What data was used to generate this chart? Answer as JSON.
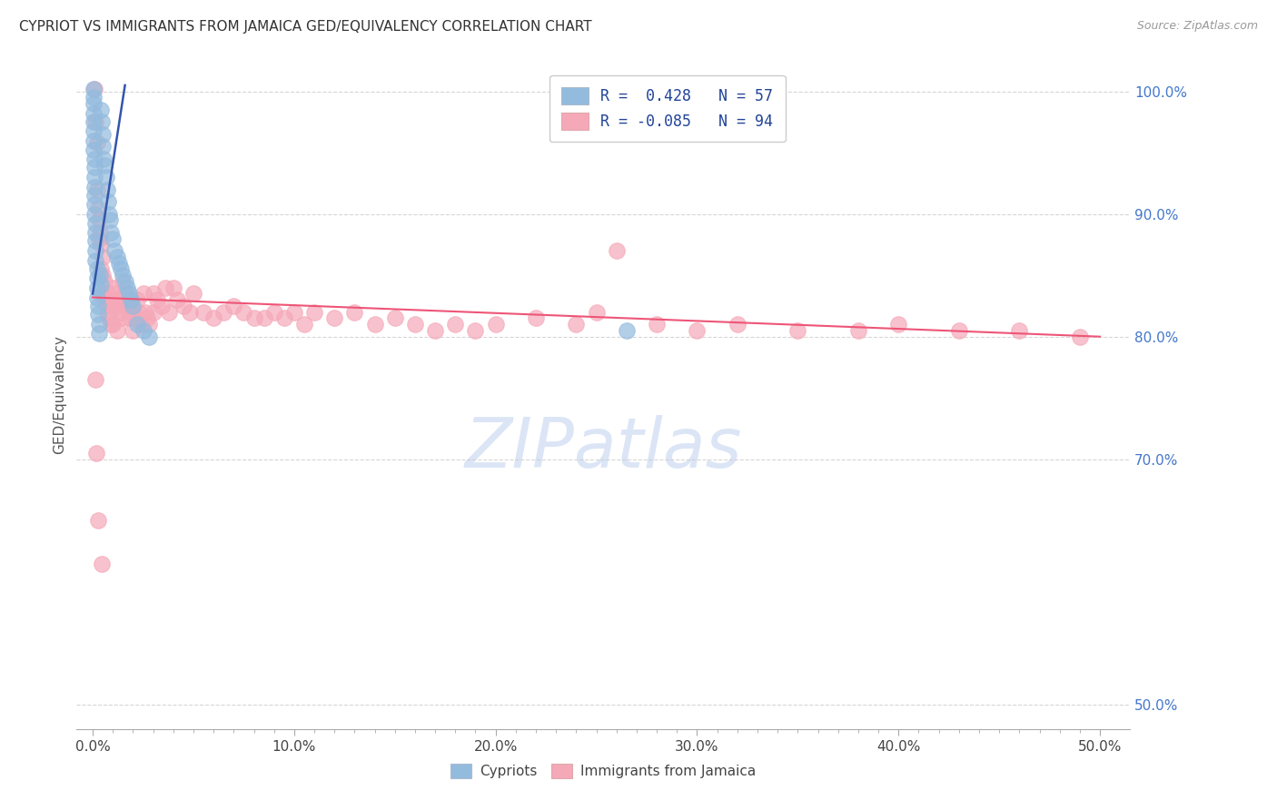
{
  "title": "CYPRIOT VS IMMIGRANTS FROM JAMAICA GED/EQUIVALENCY CORRELATION CHART",
  "source": "Source: ZipAtlas.com",
  "ylabel": "GED/Equivalency",
  "x_tick_labels": [
    "0.0%",
    "",
    "",
    "",
    "",
    "",
    "",
    "",
    "",
    "",
    "10.0%",
    "",
    "",
    "",
    "",
    "",
    "",
    "",
    "",
    "",
    "20.0%",
    "",
    "",
    "",
    "",
    "",
    "",
    "",
    "",
    "",
    "30.0%",
    "",
    "",
    "",
    "",
    "",
    "",
    "",
    "",
    "",
    "40.0%",
    "",
    "",
    "",
    "",
    "",
    "",
    "",
    "",
    "",
    "50.0%"
  ],
  "x_tick_values": [
    0,
    1,
    2,
    3,
    4,
    5,
    6,
    7,
    8,
    9,
    10,
    11,
    12,
    13,
    14,
    15,
    16,
    17,
    18,
    19,
    20,
    21,
    22,
    23,
    24,
    25,
    26,
    27,
    28,
    29,
    30,
    31,
    32,
    33,
    34,
    35,
    36,
    37,
    38,
    39,
    40,
    41,
    42,
    43,
    44,
    45,
    46,
    47,
    48,
    49,
    50
  ],
  "x_major_ticks": [
    0,
    10,
    20,
    30,
    40,
    50
  ],
  "x_major_labels": [
    "0.0%",
    "10.0%",
    "20.0%",
    "30.0%",
    "40.0%",
    "50.0%"
  ],
  "y_tick_labels": [
    "100.0%",
    "90.0%",
    "80.0%",
    "70.0%",
    "50.0%"
  ],
  "y_tick_values": [
    100.0,
    90.0,
    80.0,
    70.0,
    50.0
  ],
  "xlim": [
    -0.8,
    51.5
  ],
  "ylim": [
    48.0,
    102.5
  ],
  "blue_color": "#93BBDE",
  "pink_color": "#F5A8B8",
  "blue_edge_color": "#6699BB",
  "pink_edge_color": "#E07090",
  "blue_line_color": "#3355AA",
  "pink_line_color": "#EE5577",
  "background_color": "#FFFFFF",
  "watermark": "ZIPatlas",
  "watermark_color": "#B8CCEE",
  "legend_r_blue": "R =  0.428",
  "legend_n_blue": "N = 57",
  "legend_r_pink": "R = -0.085",
  "legend_n_pink": "N = 94",
  "blue_line_x": [
    0.0,
    1.6
  ],
  "blue_line_y": [
    83.5,
    100.5
  ],
  "pink_line_x": [
    0.0,
    50.0
  ],
  "pink_line_y": [
    83.2,
    80.0
  ],
  "blue_x": [
    0.05,
    0.05,
    0.05,
    0.05,
    0.05,
    0.05,
    0.05,
    0.05,
    0.1,
    0.1,
    0.1,
    0.1,
    0.1,
    0.1,
    0.1,
    0.15,
    0.15,
    0.15,
    0.15,
    0.15,
    0.2,
    0.2,
    0.2,
    0.2,
    0.25,
    0.25,
    0.3,
    0.3,
    0.35,
    0.4,
    0.4,
    0.45,
    0.5,
    0.5,
    0.55,
    0.6,
    0.65,
    0.7,
    0.75,
    0.8,
    0.85,
    0.9,
    1.0,
    1.1,
    1.2,
    1.3,
    1.4,
    1.5,
    1.6,
    1.7,
    1.8,
    1.9,
    2.0,
    2.2,
    2.5,
    2.8,
    26.5
  ],
  "blue_y": [
    100.2,
    99.5,
    99.0,
    98.2,
    97.5,
    96.8,
    96.0,
    95.2,
    94.5,
    93.8,
    93.0,
    92.2,
    91.5,
    90.8,
    90.0,
    89.2,
    88.5,
    87.8,
    87.0,
    86.2,
    85.5,
    84.8,
    84.0,
    83.2,
    82.5,
    81.8,
    81.0,
    80.3,
    85.0,
    84.2,
    98.5,
    97.5,
    96.5,
    95.5,
    94.5,
    94.0,
    93.0,
    92.0,
    91.0,
    90.0,
    89.5,
    88.5,
    88.0,
    87.0,
    86.5,
    86.0,
    85.5,
    85.0,
    84.5,
    84.0,
    83.5,
    83.0,
    82.5,
    81.0,
    80.5,
    80.0,
    80.5
  ],
  "pink_x": [
    0.1,
    0.15,
    0.2,
    0.2,
    0.25,
    0.3,
    0.3,
    0.35,
    0.4,
    0.4,
    0.5,
    0.5,
    0.5,
    0.6,
    0.6,
    0.7,
    0.7,
    0.8,
    0.8,
    0.9,
    0.9,
    1.0,
    1.0,
    1.0,
    1.1,
    1.2,
    1.2,
    1.3,
    1.4,
    1.5,
    1.5,
    1.6,
    1.7,
    1.8,
    1.9,
    2.0,
    2.0,
    2.1,
    2.2,
    2.3,
    2.4,
    2.5,
    2.6,
    2.7,
    2.8,
    3.0,
    3.0,
    3.2,
    3.4,
    3.6,
    3.8,
    4.0,
    4.2,
    4.5,
    4.8,
    5.0,
    5.5,
    6.0,
    6.5,
    7.0,
    7.5,
    8.0,
    8.5,
    9.0,
    9.5,
    10.0,
    10.5,
    11.0,
    12.0,
    13.0,
    14.0,
    15.0,
    16.0,
    17.0,
    18.0,
    19.0,
    20.0,
    22.0,
    24.0,
    25.0,
    26.0,
    28.0,
    30.0,
    32.0,
    35.0,
    38.0,
    40.0,
    43.0,
    46.0,
    49.0,
    0.12,
    0.18,
    0.28,
    0.45
  ],
  "pink_y": [
    100.2,
    97.5,
    95.8,
    92.0,
    90.5,
    89.5,
    88.0,
    88.5,
    87.5,
    85.5,
    86.5,
    85.0,
    83.5,
    83.0,
    84.5,
    83.5,
    82.0,
    83.0,
    81.5,
    82.5,
    81.0,
    84.0,
    82.5,
    81.0,
    83.5,
    82.5,
    80.5,
    83.0,
    82.0,
    84.5,
    81.5,
    83.5,
    82.5,
    81.5,
    83.0,
    82.0,
    80.5,
    81.5,
    83.0,
    82.0,
    81.0,
    83.5,
    82.0,
    81.5,
    81.0,
    83.5,
    82.0,
    83.0,
    82.5,
    84.0,
    82.0,
    84.0,
    83.0,
    82.5,
    82.0,
    83.5,
    82.0,
    81.5,
    82.0,
    82.5,
    82.0,
    81.5,
    81.5,
    82.0,
    81.5,
    82.0,
    81.0,
    82.0,
    81.5,
    82.0,
    81.0,
    81.5,
    81.0,
    80.5,
    81.0,
    80.5,
    81.0,
    81.5,
    81.0,
    82.0,
    87.0,
    81.0,
    80.5,
    81.0,
    80.5,
    80.5,
    81.0,
    80.5,
    80.5,
    80.0,
    76.5,
    70.5,
    65.0,
    61.5
  ]
}
